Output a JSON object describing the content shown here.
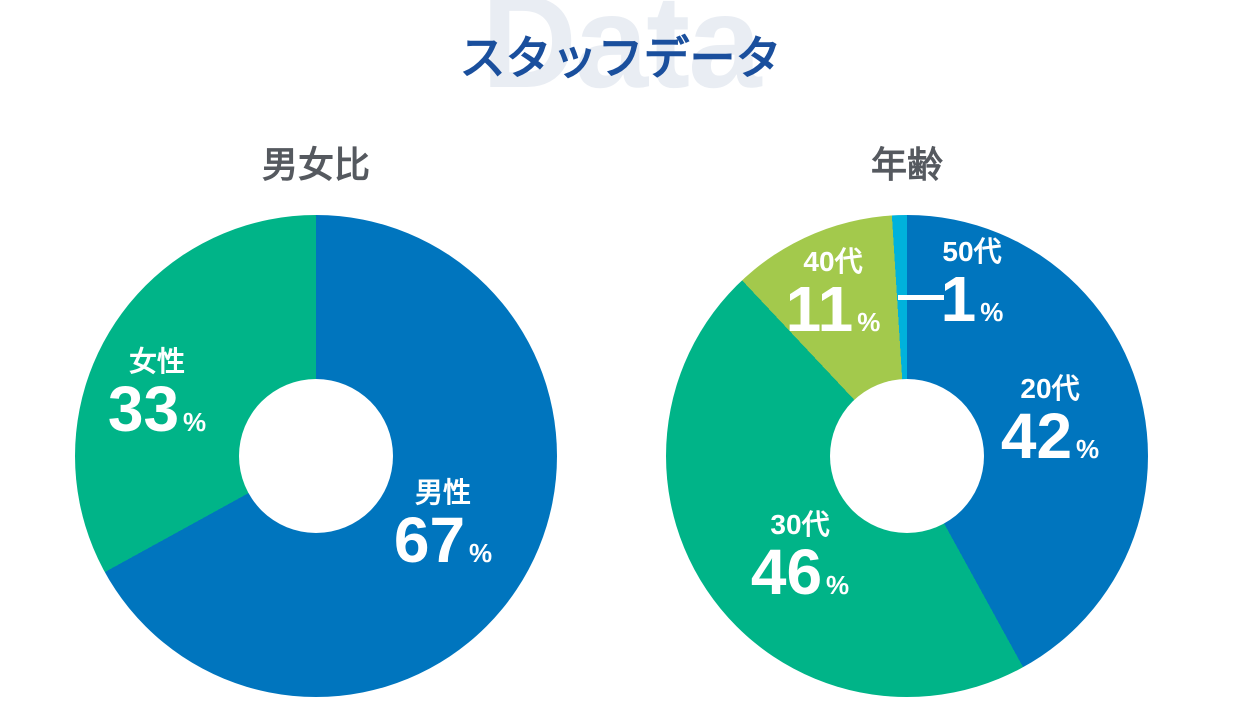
{
  "header": {
    "title": "スタッフデータ",
    "watermark": "Data",
    "title_color": "#1A4F9D",
    "watermark_color": "#E9EDF3"
  },
  "styles": {
    "chart_title_color": "#55595F",
    "label_text_color": "#FFFFFF",
    "background_color": "#FFFFFF"
  },
  "chart_data": [
    {
      "type": "pie",
      "variant": "donut",
      "title": "男女比",
      "unit": "%",
      "start_angle_deg": 0,
      "direction": "clockwise",
      "slices": [
        {
          "label": "男性",
          "value": 67,
          "color": "#0075BE"
        },
        {
          "label": "女性",
          "value": 33,
          "color": "#00B488"
        }
      ]
    },
    {
      "type": "pie",
      "variant": "donut",
      "title": "年齢",
      "unit": "%",
      "start_angle_deg": 0,
      "direction": "clockwise",
      "slices": [
        {
          "label": "20代",
          "value": 42,
          "color": "#0075BE"
        },
        {
          "label": "30代",
          "value": 46,
          "color": "#00B488"
        },
        {
          "label": "40代",
          "value": 11,
          "color": "#A3C94C"
        },
        {
          "label": "50代",
          "value": 1,
          "color": "#00B2DC"
        }
      ]
    }
  ]
}
